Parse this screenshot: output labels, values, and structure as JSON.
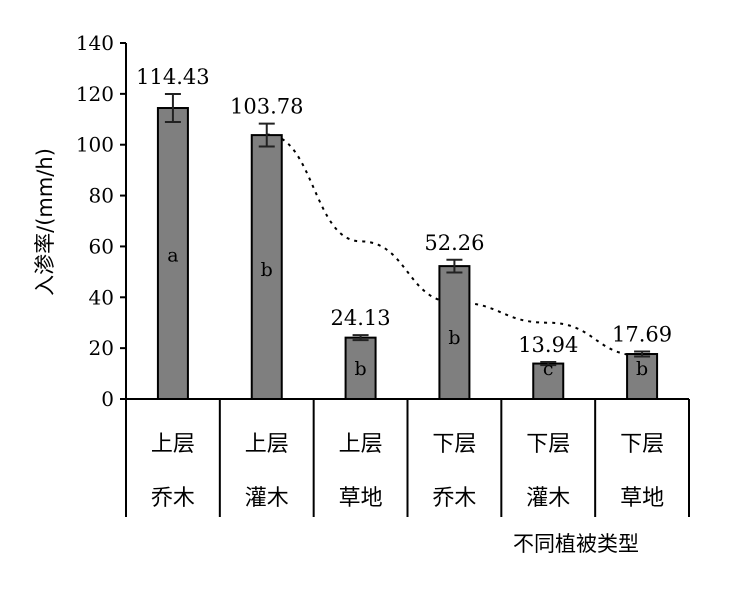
{
  "chart_data": {
    "type": "bar",
    "categories": [
      [
        "上层",
        "乔木"
      ],
      [
        "上层",
        "灌木"
      ],
      [
        "上层",
        "草地"
      ],
      [
        "下层",
        "乔木"
      ],
      [
        "下层",
        "灌木"
      ],
      [
        "下层",
        "草地"
      ]
    ],
    "values": [
      114.43,
      103.78,
      24.13,
      52.26,
      13.94,
      17.69
    ],
    "error": [
      5.5,
      4.5,
      1.0,
      2.5,
      0.6,
      1.0
    ],
    "value_labels": [
      "114.43",
      "103.78",
      "24.13",
      "52.26",
      "13.94",
      "17.69"
    ],
    "significance_letters": [
      "a",
      "b",
      "b",
      "b",
      "c",
      "b"
    ],
    "ylabel": "入渗率/(mm/h)",
    "xlabel": "不同植被类型",
    "ylim": [
      0,
      140
    ],
    "yticks": [
      0,
      20,
      40,
      60,
      80,
      100,
      120,
      140
    ],
    "bar_color": "#7f7f7f",
    "trendline": {
      "style": "dotted",
      "x": [
        2,
        3,
        4,
        5,
        6
      ],
      "y": [
        104,
        62,
        38,
        30,
        17
      ]
    }
  }
}
